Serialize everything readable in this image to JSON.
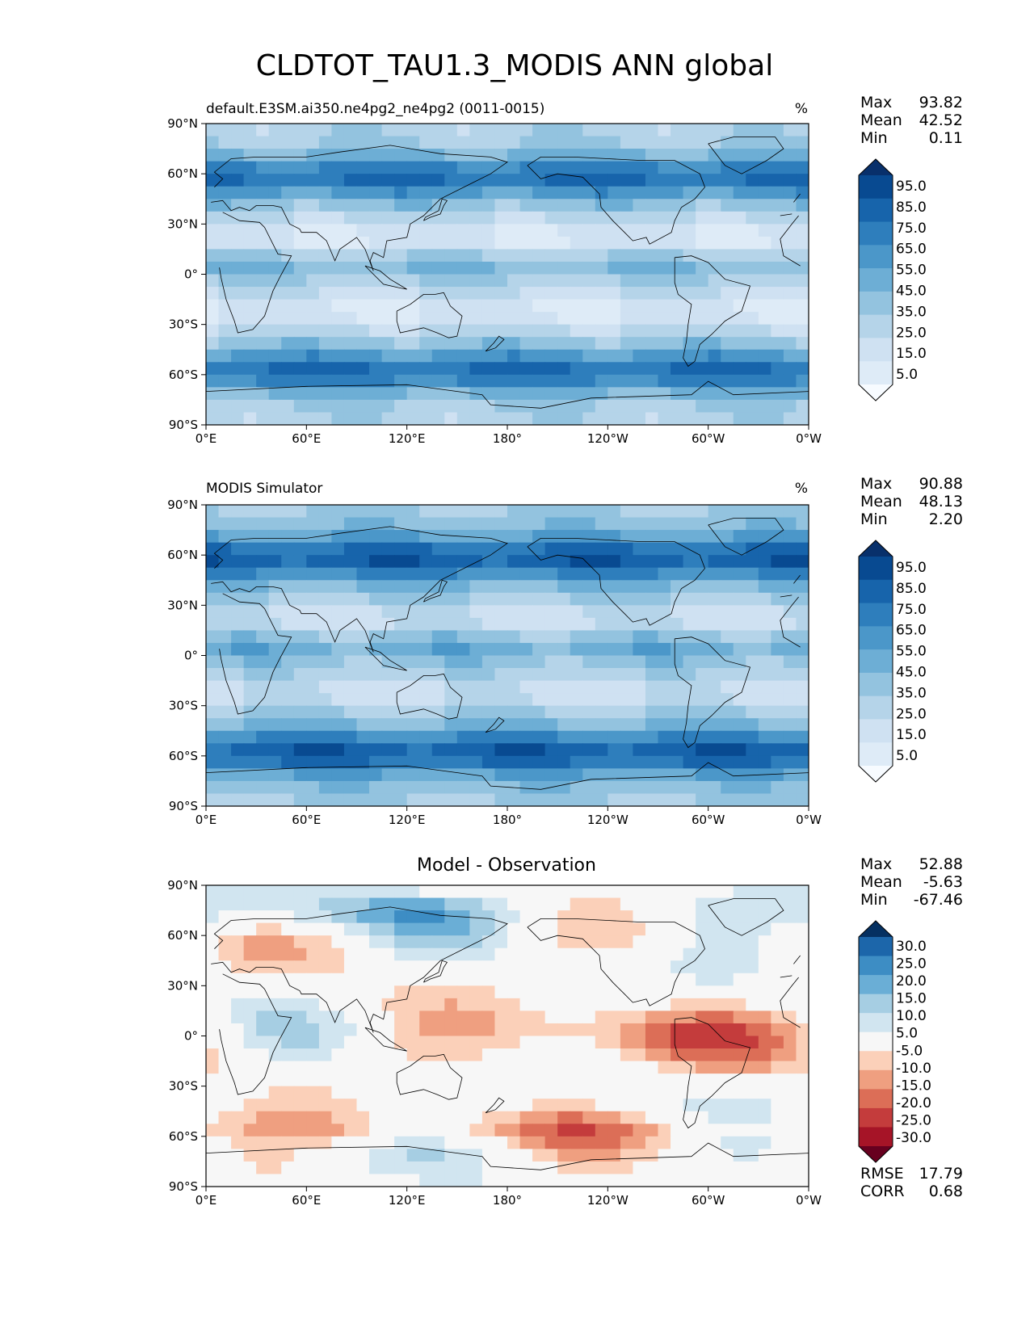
{
  "figure": {
    "title": "CLDTOT_TAU1.3_MODIS ANN global"
  },
  "colors": {
    "blues": [
      "#f7fbff",
      "#deebf7",
      "#cfe1f2",
      "#b5d4e9",
      "#93c3df",
      "#6daed5",
      "#4b97c9",
      "#2e7ebc",
      "#1764ab",
      "#084a91",
      "#08306b"
    ],
    "diverging": [
      "#67001f",
      "#a61427",
      "#c43c3c",
      "#dc6e57",
      "#ef9f80",
      "#fbd0b9",
      "#f7f7f7",
      "#d1e5f0",
      "#a6cee3",
      "#6aaed6",
      "#3d8dc4",
      "#1c66aa",
      "#053061"
    ],
    "land_outline": "#000000"
  },
  "chart_data": [
    {
      "type": "heatmap",
      "title": "",
      "left_title": "default.E3SM.ai350.ne4pg2_ne4pg2 (0011-0015)",
      "units": "%",
      "x_ticks": [
        "0°E",
        "60°E",
        "120°E",
        "180°",
        "120°W",
        "60°W",
        "0°W"
      ],
      "y_ticks": [
        "90°N",
        "60°N",
        "30°N",
        "0°",
        "30°S",
        "60°S",
        "90°S"
      ],
      "xlim": [
        0,
        360
      ],
      "ylim": [
        -90,
        90
      ],
      "stats": {
        "Max": "93.82",
        "Mean": "42.52",
        "Min": "0.11"
      },
      "colorbar": {
        "levels": [
          "95.0",
          "85.0",
          "75.0",
          "65.0",
          "55.0",
          "45.0",
          "35.0",
          "25.0",
          "15.0",
          "5.0"
        ],
        "extend": "both"
      }
    },
    {
      "type": "heatmap",
      "title": "",
      "left_title": "MODIS Simulator",
      "units": "%",
      "x_ticks": [
        "0°E",
        "60°E",
        "120°E",
        "180°",
        "120°W",
        "60°W",
        "0°W"
      ],
      "y_ticks": [
        "90°N",
        "60°N",
        "30°N",
        "0°",
        "30°S",
        "60°S",
        "90°S"
      ],
      "xlim": [
        0,
        360
      ],
      "ylim": [
        -90,
        90
      ],
      "stats": {
        "Max": "90.88",
        "Mean": "48.13",
        "Min": "2.20"
      },
      "colorbar": {
        "levels": [
          "95.0",
          "85.0",
          "75.0",
          "65.0",
          "55.0",
          "45.0",
          "35.0",
          "25.0",
          "15.0",
          "5.0"
        ],
        "extend": "both"
      }
    },
    {
      "type": "heatmap",
      "title": "Model - Observation",
      "left_title": "",
      "units": "",
      "x_ticks": [
        "0°E",
        "60°E",
        "120°E",
        "180°",
        "120°W",
        "60°W",
        "0°W"
      ],
      "y_ticks": [
        "90°N",
        "60°N",
        "30°N",
        "0°",
        "30°S",
        "60°S",
        "90°S"
      ],
      "xlim": [
        0,
        360
      ],
      "ylim": [
        -90,
        90
      ],
      "stats": {
        "Max": "52.88",
        "Mean": "-5.63",
        "Min": "-67.46"
      },
      "colorbar": {
        "levels": [
          "30.0",
          "25.0",
          "20.0",
          "15.0",
          "10.0",
          "5.0",
          "-5.0",
          "-10.0",
          "-15.0",
          "-20.0",
          "-25.0",
          "-30.0"
        ],
        "extend": "both"
      },
      "metrics": {
        "RMSE": "17.79",
        "CORR": "0.68"
      }
    }
  ]
}
